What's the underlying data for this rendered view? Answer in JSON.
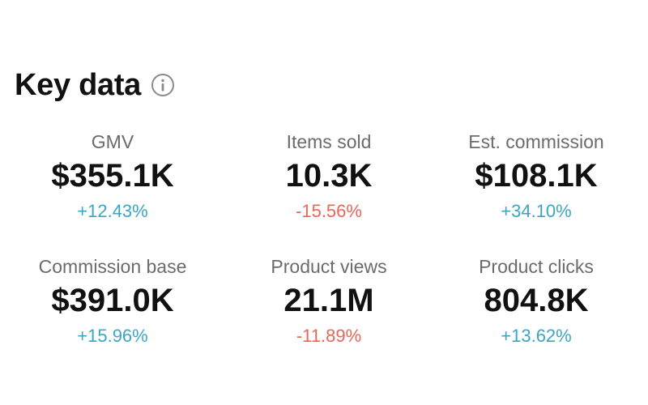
{
  "header": {
    "title": "Key data",
    "icon": "info-icon"
  },
  "colors": {
    "positive": "#3aa6c4",
    "negative": "#e8665a",
    "label": "#6b6b6b",
    "value": "#111111"
  },
  "metrics": [
    {
      "label": "GMV",
      "value": "$355.1K",
      "change": "+12.43%",
      "trend": "up"
    },
    {
      "label": "Items sold",
      "value": "10.3K",
      "change": "-15.56%",
      "trend": "down"
    },
    {
      "label": "Est. commission",
      "value": "$108.1K",
      "change": "+34.10%",
      "trend": "up"
    },
    {
      "label": "Commission base",
      "value": "$391.0K",
      "change": "+15.96%",
      "trend": "up"
    },
    {
      "label": "Product views",
      "value": "21.1M",
      "change": "-11.89%",
      "trend": "down"
    },
    {
      "label": "Product clicks",
      "value": "804.8K",
      "change": "+13.62%",
      "trend": "up"
    }
  ]
}
